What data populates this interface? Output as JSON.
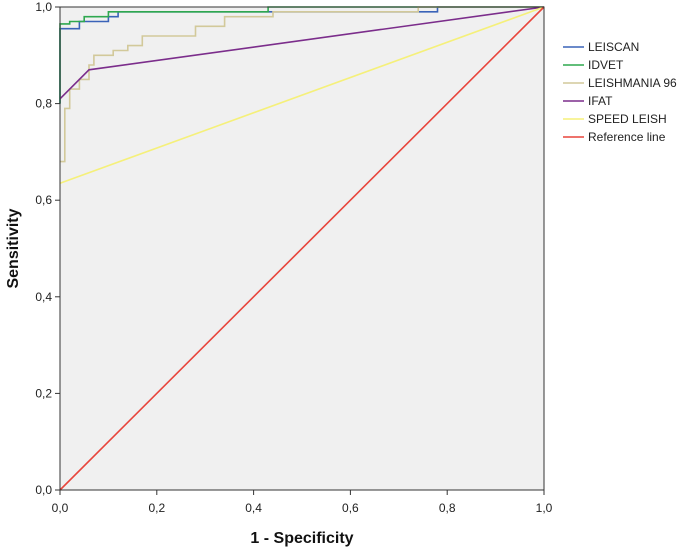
{
  "chart_data": {
    "type": "line",
    "title": "",
    "xlabel": "1 - Specificity",
    "ylabel": "Sensitivity",
    "xlim": [
      0,
      1
    ],
    "ylim": [
      0,
      1
    ],
    "x_ticks": [
      "0,0",
      "0,2",
      "0,4",
      "0,6",
      "0,8",
      "1,0"
    ],
    "y_ticks": [
      "0,0",
      "0,2",
      "0,4",
      "0,6",
      "0,8",
      "1,0"
    ],
    "grid": false,
    "legend_position": "right",
    "plot_background": "#f0f0f0",
    "series": [
      {
        "name": "LEISCAN",
        "color": "#3a63b8",
        "points": [
          [
            0,
            0.8
          ],
          [
            0,
            0.955
          ],
          [
            0.04,
            0.955
          ],
          [
            0.04,
            0.97
          ],
          [
            0.1,
            0.97
          ],
          [
            0.1,
            0.98
          ],
          [
            0.12,
            0.98
          ],
          [
            0.12,
            0.99
          ],
          [
            0.78,
            0.99
          ],
          [
            0.78,
            1.0
          ],
          [
            1,
            1
          ]
        ]
      },
      {
        "name": "IDVET",
        "color": "#2fa84f",
        "points": [
          [
            0,
            0.8
          ],
          [
            0,
            0.965
          ],
          [
            0.02,
            0.965
          ],
          [
            0.02,
            0.97
          ],
          [
            0.05,
            0.97
          ],
          [
            0.05,
            0.98
          ],
          [
            0.1,
            0.98
          ],
          [
            0.1,
            0.99
          ],
          [
            0.43,
            0.99
          ],
          [
            0.43,
            1.0
          ],
          [
            1,
            1
          ]
        ]
      },
      {
        "name": "LEISHMANIA 96",
        "color": "#d2c99a",
        "points": [
          [
            0,
            0.68
          ],
          [
            0.01,
            0.68
          ],
          [
            0.01,
            0.79
          ],
          [
            0.02,
            0.79
          ],
          [
            0.02,
            0.83
          ],
          [
            0.04,
            0.83
          ],
          [
            0.04,
            0.85
          ],
          [
            0.06,
            0.85
          ],
          [
            0.06,
            0.88
          ],
          [
            0.07,
            0.88
          ],
          [
            0.07,
            0.9
          ],
          [
            0.11,
            0.9
          ],
          [
            0.11,
            0.91
          ],
          [
            0.14,
            0.91
          ],
          [
            0.14,
            0.92
          ],
          [
            0.17,
            0.92
          ],
          [
            0.17,
            0.94
          ],
          [
            0.28,
            0.94
          ],
          [
            0.28,
            0.96
          ],
          [
            0.34,
            0.96
          ],
          [
            0.34,
            0.98
          ],
          [
            0.44,
            0.98
          ],
          [
            0.44,
            0.99
          ],
          [
            0.74,
            0.99
          ],
          [
            0.74,
            1.0
          ],
          [
            1,
            1
          ]
        ]
      },
      {
        "name": "IFAT",
        "color": "#7b2d8b",
        "points": [
          [
            0,
            0.81
          ],
          [
            0.06,
            0.87
          ],
          [
            1,
            1
          ]
        ]
      },
      {
        "name": "SPEED LEISH",
        "color": "#f5f07a",
        "points": [
          [
            0,
            0.635
          ],
          [
            1,
            1
          ]
        ]
      },
      {
        "name": "Reference line",
        "color": "#e8453c",
        "points": [
          [
            0,
            0
          ],
          [
            1,
            1
          ]
        ]
      }
    ]
  }
}
